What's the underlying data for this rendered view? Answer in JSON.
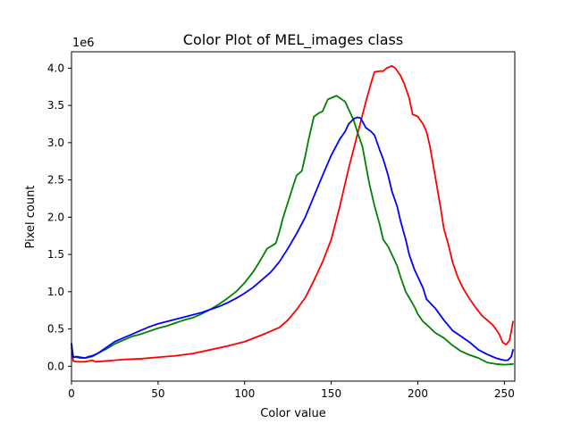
{
  "chart_data": {
    "type": "line",
    "title": "Color Plot of MEL_images class",
    "xlabel": "Color value",
    "ylabel": "Pixel count",
    "y_multiplier_label": "1e6",
    "xlim": [
      0,
      256
    ],
    "ylim": [
      -200000,
      4220000
    ],
    "xticks": [
      0,
      50,
      100,
      150,
      200,
      250
    ],
    "yticks": [
      0,
      500000,
      1000000,
      1500000,
      2000000,
      2500000,
      3000000,
      3500000,
      4000000
    ],
    "ytick_labels": [
      "0.0",
      "0.5",
      "1.0",
      "1.5",
      "2.0",
      "2.5",
      "3.0",
      "3.5",
      "4.0"
    ],
    "grid": false,
    "legend": "none",
    "series": [
      {
        "color": "#ff0000",
        "points": [
          [
            0,
            300000
          ],
          [
            1,
            70000
          ],
          [
            3,
            60000
          ],
          [
            5,
            60000
          ],
          [
            8,
            60000
          ],
          [
            10,
            70000
          ],
          [
            12,
            80000
          ],
          [
            14,
            60000
          ],
          [
            20,
            70000
          ],
          [
            25,
            80000
          ],
          [
            30,
            90000
          ],
          [
            40,
            100000
          ],
          [
            50,
            120000
          ],
          [
            60,
            140000
          ],
          [
            70,
            170000
          ],
          [
            80,
            220000
          ],
          [
            90,
            270000
          ],
          [
            100,
            330000
          ],
          [
            110,
            420000
          ],
          [
            120,
            520000
          ],
          [
            125,
            620000
          ],
          [
            130,
            760000
          ],
          [
            135,
            920000
          ],
          [
            140,
            1150000
          ],
          [
            145,
            1400000
          ],
          [
            150,
            1700000
          ],
          [
            155,
            2150000
          ],
          [
            160,
            2650000
          ],
          [
            165,
            3100000
          ],
          [
            170,
            3550000
          ],
          [
            173,
            3800000
          ],
          [
            175,
            3950000
          ],
          [
            178,
            3960000
          ],
          [
            180,
            3960000
          ],
          [
            182,
            4000000
          ],
          [
            185,
            4030000
          ],
          [
            187,
            4000000
          ],
          [
            190,
            3900000
          ],
          [
            192,
            3800000
          ],
          [
            195,
            3600000
          ],
          [
            197,
            3380000
          ],
          [
            200,
            3350000
          ],
          [
            203,
            3250000
          ],
          [
            205,
            3150000
          ],
          [
            207,
            2950000
          ],
          [
            210,
            2550000
          ],
          [
            213,
            2150000
          ],
          [
            215,
            1850000
          ],
          [
            218,
            1600000
          ],
          [
            220,
            1400000
          ],
          [
            223,
            1200000
          ],
          [
            226,
            1050000
          ],
          [
            230,
            900000
          ],
          [
            233,
            800000
          ],
          [
            237,
            680000
          ],
          [
            240,
            620000
          ],
          [
            243,
            560000
          ],
          [
            245,
            500000
          ],
          [
            247,
            430000
          ],
          [
            249,
            320000
          ],
          [
            251,
            290000
          ],
          [
            253,
            350000
          ],
          [
            255,
            600000
          ]
        ]
      },
      {
        "color": "#008000",
        "points": [
          [
            0,
            250000
          ],
          [
            1,
            130000
          ],
          [
            3,
            120000
          ],
          [
            5,
            110000
          ],
          [
            8,
            110000
          ],
          [
            10,
            120000
          ],
          [
            12,
            130000
          ],
          [
            15,
            170000
          ],
          [
            20,
            230000
          ],
          [
            25,
            300000
          ],
          [
            30,
            350000
          ],
          [
            35,
            400000
          ],
          [
            40,
            430000
          ],
          [
            45,
            470000
          ],
          [
            50,
            510000
          ],
          [
            55,
            540000
          ],
          [
            60,
            580000
          ],
          [
            65,
            620000
          ],
          [
            70,
            650000
          ],
          [
            75,
            700000
          ],
          [
            80,
            760000
          ],
          [
            85,
            830000
          ],
          [
            90,
            910000
          ],
          [
            95,
            1000000
          ],
          [
            100,
            1120000
          ],
          [
            105,
            1270000
          ],
          [
            108,
            1380000
          ],
          [
            110,
            1460000
          ],
          [
            113,
            1580000
          ],
          [
            116,
            1620000
          ],
          [
            118,
            1650000
          ],
          [
            120,
            1800000
          ],
          [
            122,
            1980000
          ],
          [
            125,
            2200000
          ],
          [
            128,
            2420000
          ],
          [
            130,
            2560000
          ],
          [
            133,
            2620000
          ],
          [
            135,
            2820000
          ],
          [
            137,
            3050000
          ],
          [
            140,
            3350000
          ],
          [
            143,
            3400000
          ],
          [
            145,
            3420000
          ],
          [
            148,
            3580000
          ],
          [
            150,
            3600000
          ],
          [
            153,
            3630000
          ],
          [
            155,
            3600000
          ],
          [
            158,
            3550000
          ],
          [
            160,
            3450000
          ],
          [
            163,
            3300000
          ],
          [
            165,
            3150000
          ],
          [
            168,
            2950000
          ],
          [
            170,
            2700000
          ],
          [
            172,
            2450000
          ],
          [
            175,
            2150000
          ],
          [
            178,
            1900000
          ],
          [
            180,
            1700000
          ],
          [
            183,
            1600000
          ],
          [
            185,
            1500000
          ],
          [
            188,
            1350000
          ],
          [
            190,
            1200000
          ],
          [
            193,
            1000000
          ],
          [
            195,
            920000
          ],
          [
            198,
            800000
          ],
          [
            200,
            700000
          ],
          [
            203,
            600000
          ],
          [
            205,
            560000
          ],
          [
            210,
            450000
          ],
          [
            215,
            380000
          ],
          [
            220,
            280000
          ],
          [
            225,
            200000
          ],
          [
            230,
            150000
          ],
          [
            235,
            110000
          ],
          [
            240,
            50000
          ],
          [
            245,
            30000
          ],
          [
            250,
            20000
          ],
          [
            255,
            30000
          ]
        ]
      },
      {
        "color": "#0000ff",
        "points": [
          [
            0,
            300000
          ],
          [
            1,
            120000
          ],
          [
            3,
            130000
          ],
          [
            5,
            120000
          ],
          [
            8,
            110000
          ],
          [
            10,
            130000
          ],
          [
            12,
            140000
          ],
          [
            15,
            170000
          ],
          [
            20,
            250000
          ],
          [
            25,
            330000
          ],
          [
            30,
            380000
          ],
          [
            35,
            430000
          ],
          [
            40,
            480000
          ],
          [
            45,
            530000
          ],
          [
            50,
            570000
          ],
          [
            55,
            600000
          ],
          [
            60,
            630000
          ],
          [
            65,
            660000
          ],
          [
            70,
            690000
          ],
          [
            75,
            720000
          ],
          [
            80,
            760000
          ],
          [
            85,
            800000
          ],
          [
            90,
            850000
          ],
          [
            95,
            910000
          ],
          [
            100,
            980000
          ],
          [
            105,
            1060000
          ],
          [
            110,
            1160000
          ],
          [
            115,
            1260000
          ],
          [
            120,
            1400000
          ],
          [
            125,
            1580000
          ],
          [
            130,
            1780000
          ],
          [
            135,
            2000000
          ],
          [
            140,
            2280000
          ],
          [
            145,
            2560000
          ],
          [
            150,
            2830000
          ],
          [
            155,
            3050000
          ],
          [
            158,
            3150000
          ],
          [
            160,
            3250000
          ],
          [
            163,
            3320000
          ],
          [
            165,
            3340000
          ],
          [
            167,
            3330000
          ],
          [
            170,
            3200000
          ],
          [
            173,
            3150000
          ],
          [
            175,
            3100000
          ],
          [
            178,
            2900000
          ],
          [
            180,
            2780000
          ],
          [
            183,
            2550000
          ],
          [
            185,
            2350000
          ],
          [
            188,
            2150000
          ],
          [
            190,
            1950000
          ],
          [
            193,
            1700000
          ],
          [
            195,
            1500000
          ],
          [
            198,
            1300000
          ],
          [
            200,
            1200000
          ],
          [
            203,
            1050000
          ],
          [
            205,
            900000
          ],
          [
            210,
            780000
          ],
          [
            215,
            620000
          ],
          [
            220,
            480000
          ],
          [
            225,
            400000
          ],
          [
            230,
            320000
          ],
          [
            235,
            220000
          ],
          [
            240,
            160000
          ],
          [
            245,
            110000
          ],
          [
            248,
            90000
          ],
          [
            250,
            80000
          ],
          [
            252,
            80000
          ],
          [
            254,
            130000
          ],
          [
            255,
            220000
          ]
        ]
      }
    ]
  }
}
